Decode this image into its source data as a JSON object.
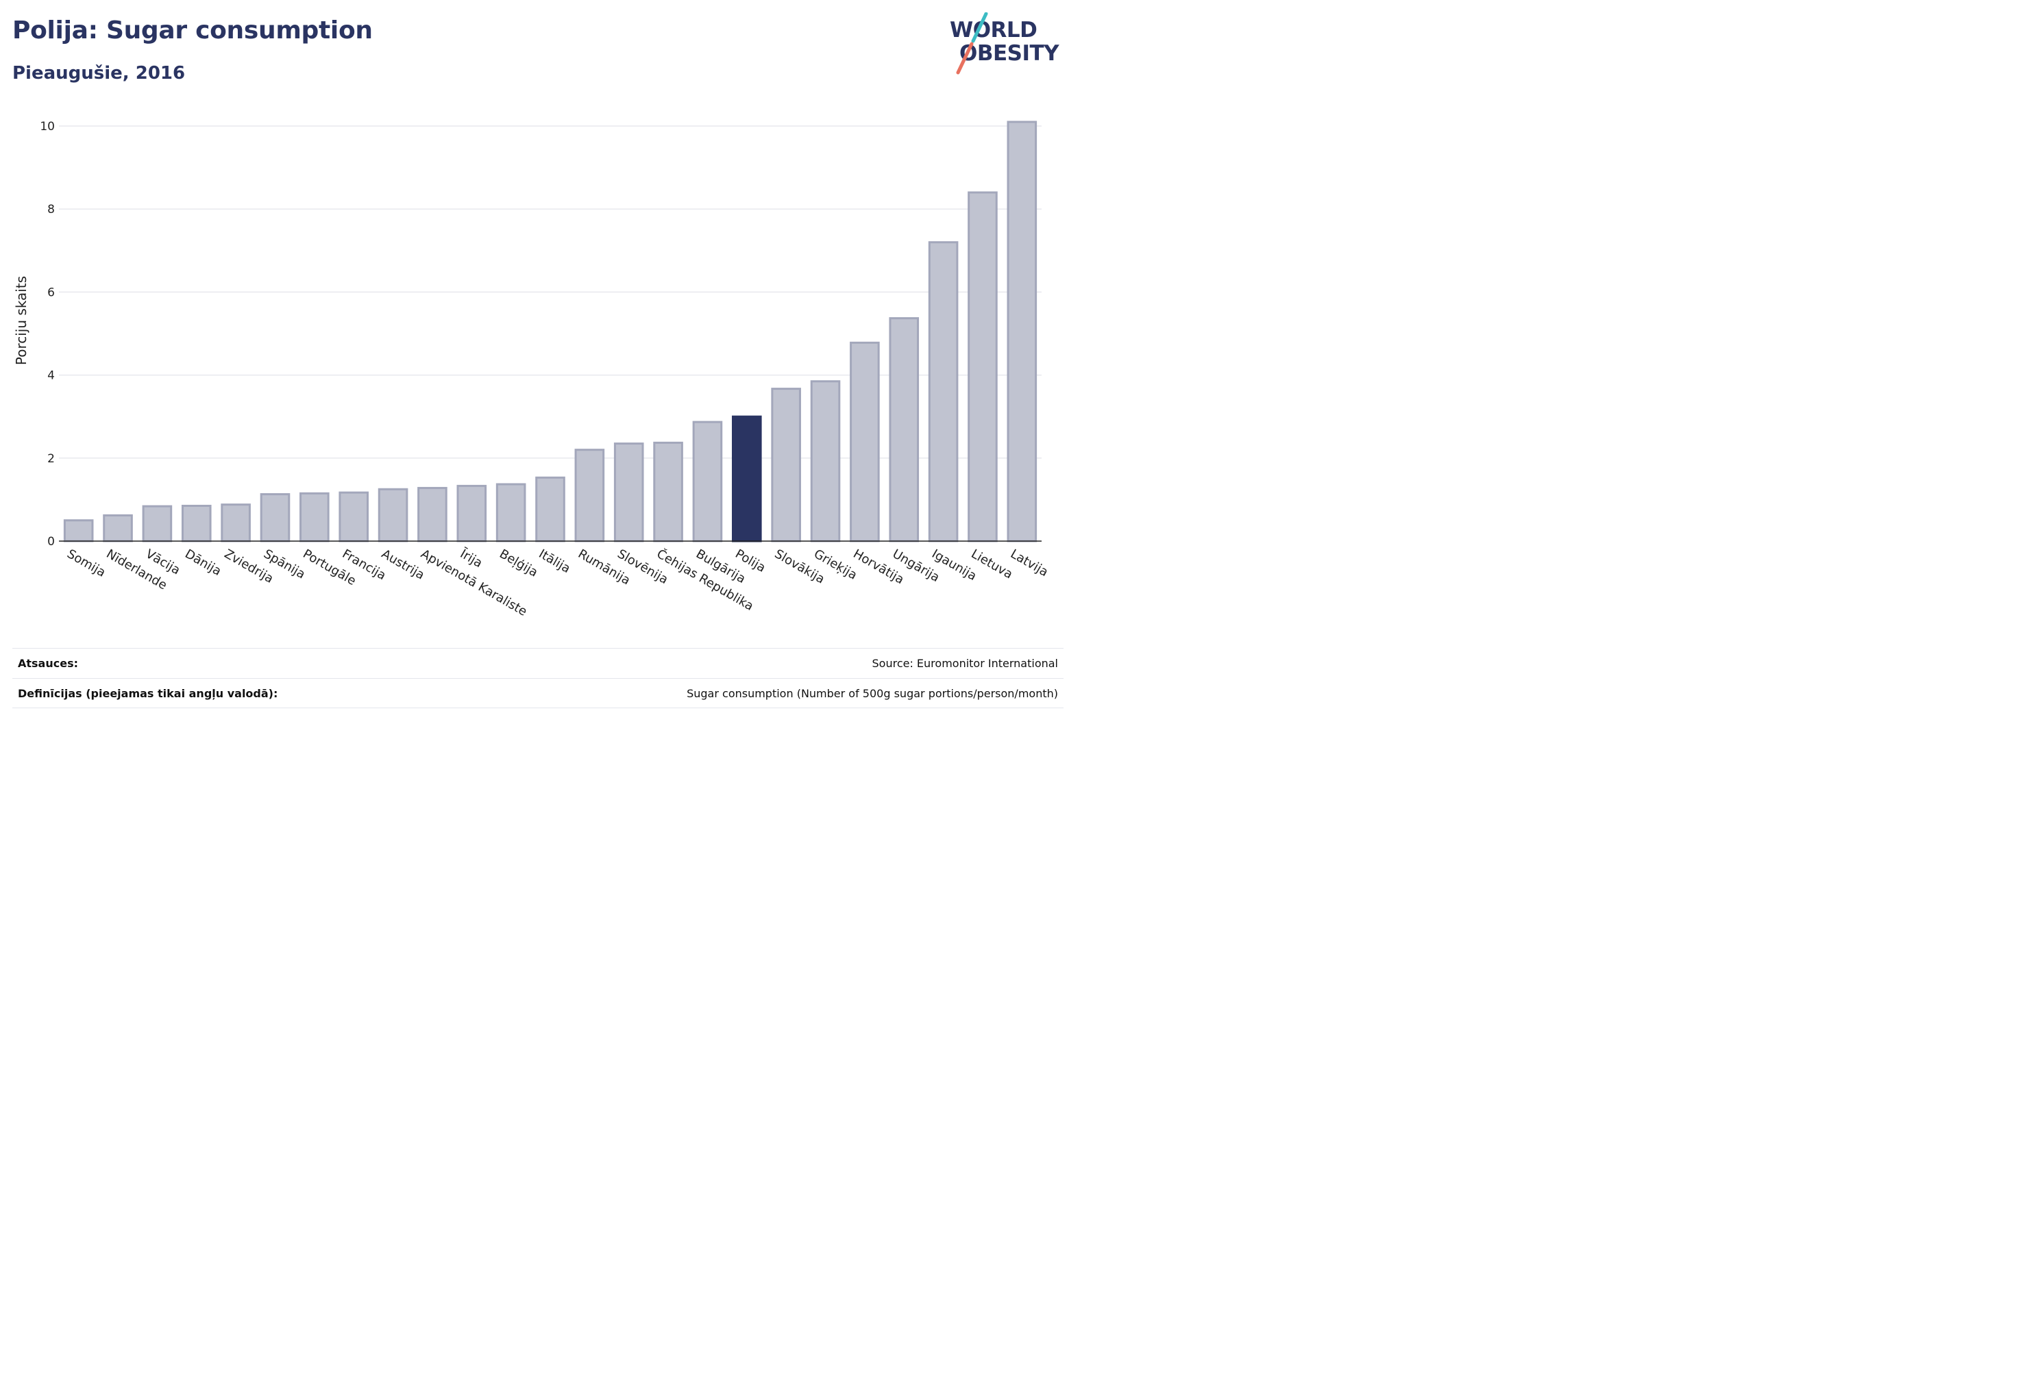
{
  "header": {
    "title": "Polija: Sugar consumption",
    "subtitle": "Pieaugušie, 2016"
  },
  "logo": {
    "line1": "WORLD",
    "line2": "OBESITY"
  },
  "colors": {
    "highlight": "#2a3462",
    "bar": "#c0c3d0",
    "bar_edge": "#a3a7bb",
    "grid": "#e8e9ee",
    "logo_teal": "#3cbcc4",
    "logo_coral": "#e8715f"
  },
  "chart_data": {
    "type": "bar",
    "ylabel": "Porciju skaits",
    "ylim": [
      0,
      10.5
    ],
    "yticks": [
      0,
      2,
      4,
      6,
      8,
      10
    ],
    "grid": true,
    "highlight": "Polija",
    "categories": [
      "Somija",
      "Nīderlande",
      "Vācija",
      "Dānija",
      "Zviedrija",
      "Spānija",
      "Portugāle",
      "Francija",
      "Austrija",
      "Apvienotā Karaliste",
      "Īrija",
      "Beļģija",
      "Itālija",
      "Rumānija",
      "Slovēnija",
      "Čehijas Republika",
      "Bulgārija",
      "Polija",
      "Slovākija",
      "Grieķija",
      "Horvātija",
      "Ungārija",
      "Igaunija",
      "Lietuva",
      "Latvija"
    ],
    "values": [
      0.5,
      0.62,
      0.84,
      0.85,
      0.88,
      1.13,
      1.15,
      1.17,
      1.25,
      1.28,
      1.33,
      1.37,
      1.53,
      2.2,
      2.35,
      2.37,
      2.87,
      3.0,
      3.67,
      3.85,
      4.78,
      5.37,
      7.2,
      8.4,
      10.1
    ]
  },
  "footer": {
    "references_label": "Atsauces:",
    "references_value": "Source: Euromonitor International",
    "definitions_label": "Definīcijas (pieejamas tikai angļu valodā):",
    "definitions_value": "Sugar consumption (Number of 500g sugar portions/person/month)"
  }
}
